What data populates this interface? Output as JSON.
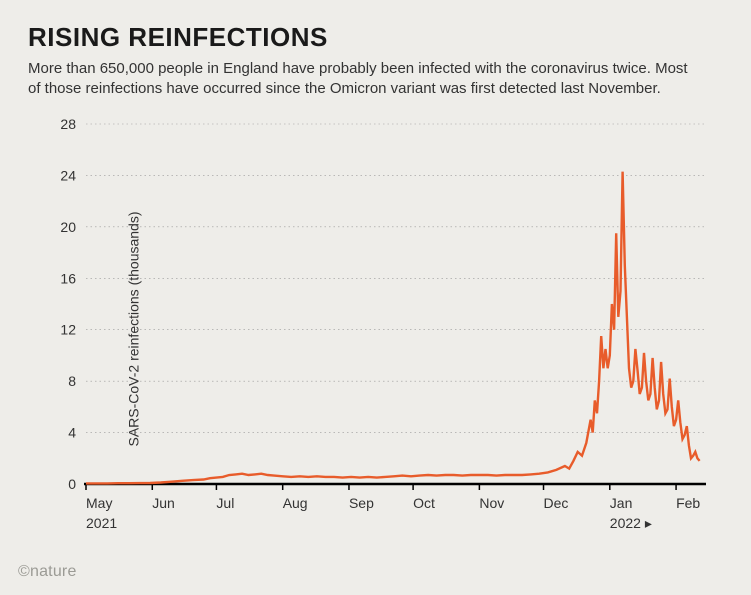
{
  "title": "RISING REINFECTIONS",
  "subtitle": "More than 650,000 people in England have probably been infected with the coronavirus twice. Most of those reinfections have occurred since the Omicron variant was first detected last November.",
  "credit": "©nature",
  "chart": {
    "type": "line",
    "ylabel": "SARS-CoV-2 reinfections (thousands)",
    "ylim": [
      0,
      28
    ],
    "ytick_step": 4,
    "yticks": [
      0,
      4,
      8,
      12,
      16,
      20,
      24,
      28
    ],
    "x_range_days": [
      0,
      290
    ],
    "xticks": [
      {
        "day": 0,
        "label": "May",
        "sub": "2021"
      },
      {
        "day": 31,
        "label": "Jun",
        "sub": ""
      },
      {
        "day": 61,
        "label": "Jul",
        "sub": ""
      },
      {
        "day": 92,
        "label": "Aug",
        "sub": ""
      },
      {
        "day": 123,
        "label": "Sep",
        "sub": ""
      },
      {
        "day": 153,
        "label": "Oct",
        "sub": ""
      },
      {
        "day": 184,
        "label": "Nov",
        "sub": ""
      },
      {
        "day": 214,
        "label": "Dec",
        "sub": ""
      },
      {
        "day": 245,
        "label": "Jan",
        "sub": "2022 ▸"
      },
      {
        "day": 276,
        "label": "Feb",
        "sub": ""
      }
    ],
    "series_color": "#e85c2b",
    "line_width": 2.4,
    "background_color": "#eeede9",
    "grid_color": "#999999",
    "grid_dash": "1.5 3",
    "baseline_color": "#000000",
    "title_fontsize": 26,
    "subtitle_fontsize": 15,
    "label_fontsize": 14,
    "data": [
      [
        0,
        0.05
      ],
      [
        5,
        0.05
      ],
      [
        10,
        0.05
      ],
      [
        15,
        0.06
      ],
      [
        20,
        0.06
      ],
      [
        25,
        0.07
      ],
      [
        30,
        0.08
      ],
      [
        35,
        0.12
      ],
      [
        40,
        0.18
      ],
      [
        45,
        0.25
      ],
      [
        50,
        0.3
      ],
      [
        55,
        0.35
      ],
      [
        58,
        0.45
      ],
      [
        61,
        0.5
      ],
      [
        64,
        0.55
      ],
      [
        67,
        0.7
      ],
      [
        70,
        0.75
      ],
      [
        73,
        0.8
      ],
      [
        76,
        0.7
      ],
      [
        79,
        0.75
      ],
      [
        82,
        0.8
      ],
      [
        85,
        0.7
      ],
      [
        88,
        0.65
      ],
      [
        92,
        0.6
      ],
      [
        96,
        0.55
      ],
      [
        100,
        0.6
      ],
      [
        104,
        0.55
      ],
      [
        108,
        0.6
      ],
      [
        112,
        0.55
      ],
      [
        116,
        0.55
      ],
      [
        120,
        0.5
      ],
      [
        124,
        0.55
      ],
      [
        128,
        0.5
      ],
      [
        132,
        0.55
      ],
      [
        136,
        0.5
      ],
      [
        140,
        0.55
      ],
      [
        144,
        0.6
      ],
      [
        148,
        0.65
      ],
      [
        152,
        0.6
      ],
      [
        156,
        0.65
      ],
      [
        160,
        0.7
      ],
      [
        164,
        0.65
      ],
      [
        168,
        0.7
      ],
      [
        172,
        0.7
      ],
      [
        176,
        0.65
      ],
      [
        180,
        0.7
      ],
      [
        184,
        0.7
      ],
      [
        188,
        0.7
      ],
      [
        192,
        0.65
      ],
      [
        196,
        0.7
      ],
      [
        200,
        0.7
      ],
      [
        204,
        0.7
      ],
      [
        208,
        0.75
      ],
      [
        212,
        0.8
      ],
      [
        216,
        0.9
      ],
      [
        220,
        1.1
      ],
      [
        224,
        1.4
      ],
      [
        226,
        1.2
      ],
      [
        228,
        1.8
      ],
      [
        230,
        2.5
      ],
      [
        232,
        2.2
      ],
      [
        234,
        3.2
      ],
      [
        236,
        5.0
      ],
      [
        237,
        4.0
      ],
      [
        238,
        6.5
      ],
      [
        239,
        5.5
      ],
      [
        240,
        8.0
      ],
      [
        241,
        11.5
      ],
      [
        242,
        9.0
      ],
      [
        243,
        10.5
      ],
      [
        244,
        9.0
      ],
      [
        245,
        10.0
      ],
      [
        246,
        14.0
      ],
      [
        247,
        12.0
      ],
      [
        248,
        19.5
      ],
      [
        249,
        13.0
      ],
      [
        250,
        15.0
      ],
      [
        251,
        24.3
      ],
      [
        252,
        17.0
      ],
      [
        253,
        13.0
      ],
      [
        254,
        9.0
      ],
      [
        255,
        7.5
      ],
      [
        256,
        8.0
      ],
      [
        257,
        10.5
      ],
      [
        258,
        8.8
      ],
      [
        259,
        7.0
      ],
      [
        260,
        7.5
      ],
      [
        261,
        10.2
      ],
      [
        262,
        8.0
      ],
      [
        263,
        6.5
      ],
      [
        264,
        7.0
      ],
      [
        265,
        9.8
      ],
      [
        266,
        7.5
      ],
      [
        267,
        5.8
      ],
      [
        268,
        6.5
      ],
      [
        269,
        9.5
      ],
      [
        270,
        7.0
      ],
      [
        271,
        5.5
      ],
      [
        272,
        5.8
      ],
      [
        273,
        8.2
      ],
      [
        274,
        6.0
      ],
      [
        275,
        4.5
      ],
      [
        276,
        5.0
      ],
      [
        277,
        6.5
      ],
      [
        278,
        4.8
      ],
      [
        279,
        3.5
      ],
      [
        280,
        3.8
      ],
      [
        281,
        4.5
      ],
      [
        282,
        3.0
      ],
      [
        283,
        2.0
      ],
      [
        284,
        2.2
      ],
      [
        285,
        2.5
      ],
      [
        286,
        2.0
      ],
      [
        287,
        1.8
      ]
    ]
  }
}
